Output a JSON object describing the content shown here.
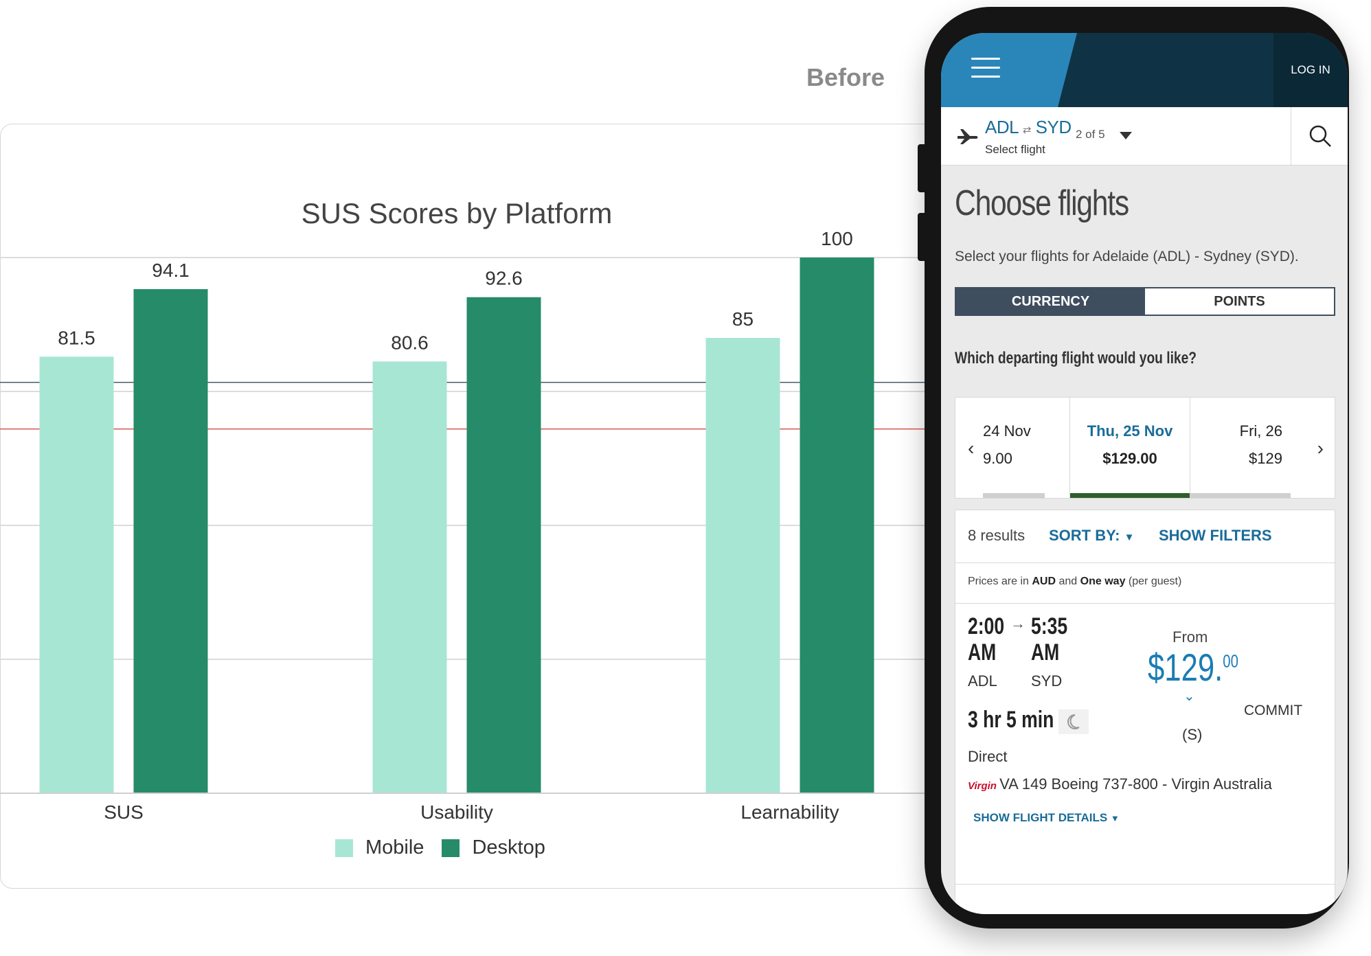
{
  "before_label": "Before",
  "chart_data": {
    "type": "bar",
    "title": "SUS Scores by Platform",
    "categories": [
      "SUS",
      "Usability",
      "Learnability"
    ],
    "series": [
      {
        "name": "Mobile",
        "values": [
          81.5,
          80.6,
          85
        ],
        "color": "#a8e6d4"
      },
      {
        "name": "Desktop",
        "values": [
          94.1,
          92.6,
          100
        ],
        "color": "#268b68"
      }
    ],
    "ylim": [
      0,
      100
    ],
    "reference_lines": [
      {
        "value": 68,
        "color": "#d9534f"
      },
      {
        "value": 76.7,
        "color": "#4a5d6b"
      }
    ],
    "grid": true,
    "legend": "bottom"
  },
  "phone": {
    "login_label": "LOG IN",
    "route_from": "ADL",
    "route_to": "SYD",
    "route_swap": "⇄",
    "select_flight": "Select flight",
    "step_count": "2 of 5",
    "page_title": "Choose flights",
    "subtitle": "Select your flights for Adelaide (ADL) - Sydney (SYD).",
    "toggle": {
      "currency": "CURRENCY",
      "points": "POINTS"
    },
    "question": "Which departing flight would you like?",
    "dates": [
      {
        "date": "24 Nov",
        "price": "9.00"
      },
      {
        "date": "Thu, 25 Nov",
        "price": "$129.00"
      },
      {
        "date": "Fri, 26",
        "price": "$129"
      }
    ],
    "results_count": "8 results",
    "sort_by": "SORT BY:",
    "show_filters": "SHOW FILTERS",
    "price_note": {
      "prefix": "Prices are in",
      "currency": "AUD",
      "and": "and",
      "trip": "One way",
      "suffix": "(per guest)"
    },
    "flight": {
      "depart_time": "2:00",
      "depart_ampm": "AM",
      "arrive_time": "5:35",
      "arrive_ampm": "AM",
      "depart_code": "ADL",
      "arrive_code": "SYD",
      "duration": "3 hr 5 min",
      "stops": "Direct",
      "from_label": "From",
      "price_main": "$129.",
      "price_cents": "00",
      "commit": "COMMIT",
      "class_label": "(S)",
      "airline": "VA 149  Boeing 737-800  -  Virgin Australia",
      "airline_logo": "Virgin",
      "details": "SHOW FLIGHT DETAILS"
    }
  }
}
